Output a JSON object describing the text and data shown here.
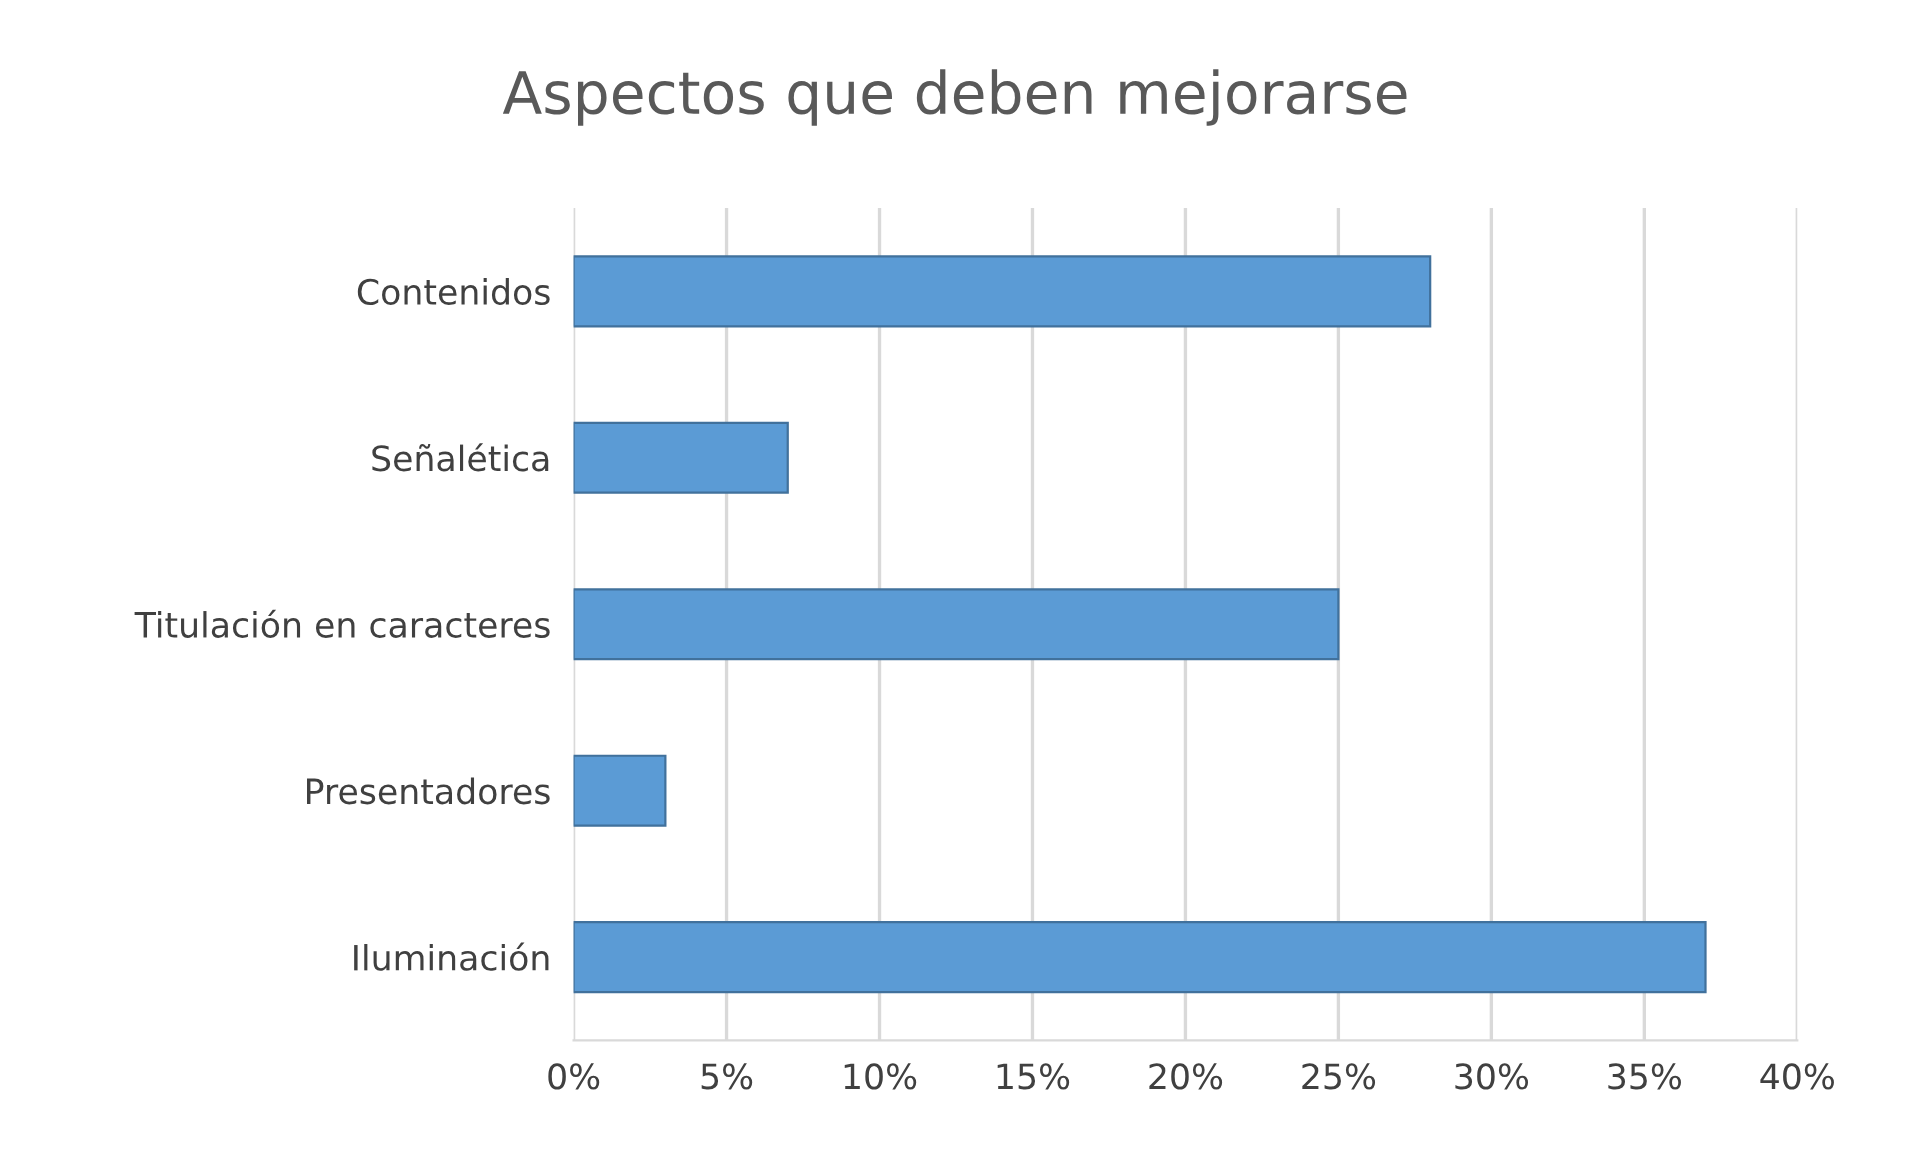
{
  "chart_data": {
    "type": "bar",
    "orientation": "horizontal",
    "title": "Aspectos que deben mejorarse",
    "categories": [
      "Contenidos",
      "Señalética",
      "Titulación en caracteres",
      "Presentadores",
      "Iluminación"
    ],
    "values": [
      28,
      7,
      25,
      3,
      37
    ],
    "color": "#5b9bd5",
    "xlim": [
      0,
      40
    ],
    "xticks": [
      {
        "value": 0,
        "label": "0%"
      },
      {
        "value": 5,
        "label": "5%"
      },
      {
        "value": 10,
        "label": "10%"
      },
      {
        "value": 15,
        "label": "15%"
      },
      {
        "value": 20,
        "label": "20%"
      },
      {
        "value": 25,
        "label": "25%"
      },
      {
        "value": 30,
        "label": "30%"
      },
      {
        "value": 35,
        "label": "35%"
      },
      {
        "value": 40,
        "label": "40%"
      }
    ],
    "grid": "x",
    "legend": false
  }
}
